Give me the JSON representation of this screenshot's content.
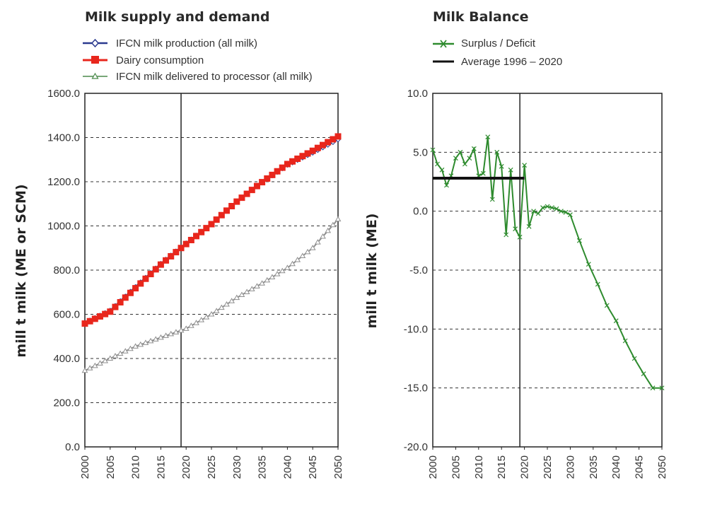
{
  "chart_data": [
    {
      "type": "line",
      "title": "Milk supply and demand",
      "xlabel": "",
      "ylabel": "mill t milk (ME or SCM)",
      "ylim": [
        0,
        1600
      ],
      "xlim": [
        2000,
        2050
      ],
      "grid": "horizontal dashed",
      "legend_position": "top-left",
      "x_ticks": [
        "2000",
        "2005",
        "2010",
        "2015",
        "2020",
        "2025",
        "2030",
        "2035",
        "2040",
        "2045",
        "2050"
      ],
      "y_ticks": [
        "0.0",
        "200.0",
        "400.0",
        "600.0",
        "800.0",
        "1000.0",
        "1200.0",
        "1400.0",
        "1600.0"
      ],
      "vline_x": 2019,
      "series": [
        {
          "name": "IFCN milk production (all milk)",
          "color": "#2b3a8f",
          "marker": "diamond",
          "x": [
            2000,
            2005,
            2010,
            2015,
            2019,
            2025,
            2030,
            2035,
            2040,
            2045,
            2050
          ],
          "values": [
            562,
            618,
            725,
            830,
            905,
            1010,
            1110,
            1195,
            1275,
            1330,
            1390
          ]
        },
        {
          "name": "Dairy consumption",
          "color": "#e8261c",
          "marker": "square",
          "x": [
            2000,
            2005,
            2010,
            2015,
            2019,
            2025,
            2030,
            2035,
            2040,
            2045,
            2050
          ],
          "values": [
            558,
            612,
            718,
            825,
            900,
            1008,
            1110,
            1198,
            1280,
            1340,
            1405
          ]
        },
        {
          "name": "IFCN milk delivered to processor (all milk)",
          "color": "#8f8f8f",
          "marker": "triangle",
          "x": [
            2000,
            2005,
            2010,
            2015,
            2020,
            2025,
            2030,
            2035,
            2040,
            2045,
            2050
          ],
          "values": [
            345,
            400,
            455,
            495,
            535,
            600,
            675,
            740,
            810,
            900,
            1030
          ]
        }
      ]
    },
    {
      "type": "line",
      "title": "Milk Balance",
      "xlabel": "",
      "ylabel": "mill t milk (ME)",
      "ylim": [
        -20,
        10
      ],
      "xlim": [
        2000,
        2050
      ],
      "grid": "horizontal dashed",
      "legend_position": "top-left",
      "x_ticks": [
        "2000",
        "2005",
        "2010",
        "2015",
        "2020",
        "2025",
        "2030",
        "2035",
        "2040",
        "2045",
        "2050"
      ],
      "y_ticks": [
        "-20.0",
        "-15.0",
        "-10.0",
        "-5.0",
        "0.0",
        "5.0",
        "10.0"
      ],
      "vline_x": 2019,
      "series": [
        {
          "name": "Surplus / Deficit",
          "color": "#2e8b2e",
          "marker": "x",
          "x": [
            2000,
            2001,
            2002,
            2003,
            2004,
            2005,
            2006,
            2007,
            2008,
            2009,
            2010,
            2011,
            2012,
            2013,
            2014,
            2015,
            2016,
            2017,
            2018,
            2019,
            2020,
            2021,
            2022,
            2023,
            2024,
            2025,
            2026,
            2027,
            2028,
            2029,
            2030,
            2032,
            2034,
            2036,
            2038,
            2040,
            2042,
            2044,
            2046,
            2048,
            2050
          ],
          "values": [
            5.2,
            4.0,
            3.5,
            2.2,
            3.0,
            4.5,
            5.0,
            4.0,
            4.5,
            5.3,
            3.0,
            3.2,
            6.3,
            1.0,
            5.0,
            3.8,
            -2.0,
            3.5,
            -1.5,
            -2.2,
            3.9,
            -1.3,
            0.0,
            -0.2,
            0.3,
            0.4,
            0.3,
            0.2,
            0.0,
            -0.1,
            -0.3,
            -2.5,
            -4.5,
            -6.2,
            -8.0,
            -9.3,
            -11.0,
            -12.5,
            -13.8,
            -15.0,
            -15.0
          ]
        },
        {
          "name": "Average 1996 – 2020",
          "color": "#111111",
          "marker": "none",
          "x": [
            2000,
            2020
          ],
          "values": [
            2.8,
            2.8
          ]
        }
      ]
    }
  ]
}
